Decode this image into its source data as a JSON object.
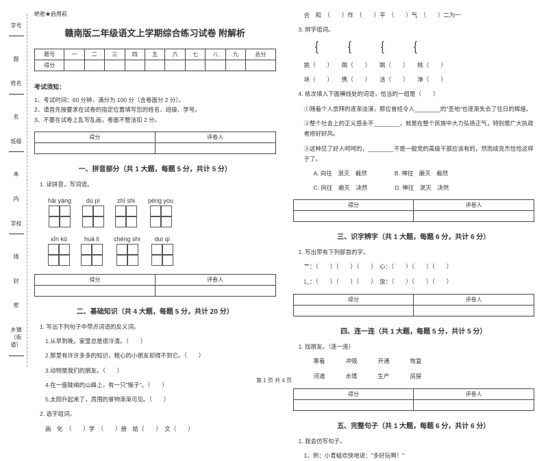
{
  "secret": "绝密★启用前",
  "title": "赣南版二年级语文上学期综合练习试卷 附解析",
  "score_headers": [
    "题号",
    "一",
    "二",
    "三",
    "四",
    "五",
    "六",
    "七",
    "八",
    "九",
    "总分"
  ],
  "score_row_label": "得分",
  "sidebar": [
    {
      "main": "学号",
      "sub": ""
    },
    {
      "main": "姓名",
      "sub": ""
    },
    {
      "main": "班级",
      "sub": ""
    },
    {
      "main": "学校",
      "sub": ""
    },
    {
      "main": "乡镇（街道）",
      "sub": ""
    }
  ],
  "side_marks": [
    "题",
    "名",
    "本",
    "内",
    "线",
    "封",
    "密"
  ],
  "exam_notes_title": "考试须知：",
  "exam_notes": [
    "1、考试时间：60 分钟，满分为 100 分（含卷面分 2 分）。",
    "2、请首先按要求在试卷的指定位置填写您的姓名、班级、学号。",
    "3、不要在试卷上乱写乱画，卷面不整洁扣 2 分。"
  ],
  "mini_table": {
    "c1": "得分",
    "c2": "评卷人"
  },
  "sections": {
    "s1": "一、拼音部分（共 1 大题，每题 5 分，共计 5 分）",
    "s2": "二、基础知识（共 4 大题，每题 5 分，共计 20 分）",
    "s3": "三、识字辨字（共 1 大题，每题 6 分，共计 6 分）",
    "s4": "四、连一连（共 1 大题，每题 5 分，共计 5 分）",
    "s5": "五、完整句子（共 1 大题，每题 6 分，共计 6 分）"
  },
  "q_pinyin_title": "1. 读拼音，写词语。",
  "pinyin_row1": [
    "hǎi yáng",
    "dú pí",
    "zhī shi",
    "péng you"
  ],
  "pinyin_row2": [
    "xīn kǔ",
    "huà lì",
    "chéng shì",
    "duì qí"
  ],
  "q2_title": "1. 写出下列句子中带点词语的反义词。",
  "q2_items": [
    "1.从早到晚，家里总是很冷清。（　　）",
    "2.那里有许许多多的知识，粗心的小朋友却得不到它。（　　）",
    "3.动物是我们的朋友。（　　）",
    "4.在一座陡峭的山峰上，有一只\"猴子\"。（　　）",
    "5.太阳升起来了，周围的景物渐渐可见。（　　）"
  ],
  "q2b_title": "2. 选字组词。",
  "q2b_line": "画　化　（　　）学　（　　）册　给（　　）　文（　　）",
  "r_line1": "合　和　（　　）作　（　　）平　（　　）气　（　　）二为一",
  "r_q3_title": "3. 辨字组词。",
  "r_q3_row1": "挑（　　）　　跳（　　）　　跳（　　）　　桃（　　）",
  "r_q3_row2": "块（　　）　　携（　　）　　洁（　　）　　净（　　）",
  "r_q4_title": "4. 依次填入下面横线处的词语，恰当的一组是（　　）",
  "r_q4_lines": [
    "①随着个人崇拜的逐渐淡漠，那位曾经令人________的\"圣地\"也逐渐失去了往日的辉煌。",
    "②整个社会上的正义感永不________，就是在整个民族中大力弘扬正气，特别是广大执政者修好好风。",
    "③这种见了好人呵呵的，________不是一般党的高级干部应该有的，然而成克杰恰恰这样子了。"
  ],
  "r_q4_opts_a": "A. 向往　泯灭　截然",
  "r_q4_opts_b": "B. 神往　磨灭　截然",
  "r_q4_opts_c": "C. 向往　磨灭　决然",
  "r_q4_opts_d": "D. 神往　泯灭　决然",
  "r_s3_q": "1. 写出带有下列部首的字。",
  "r_s3_lines": [
    "艹：（　　）（　　）（　　）　心：（　　）（　　）（　　）",
    "辶：（　　）（　　）（　　）　虫：（　　）（　　）（　　）"
  ],
  "r_s4_q": "1. 找朋友。（连一连）",
  "r_s4_row1": [
    "寒着",
    "冲毁",
    "开通",
    "恢复"
  ],
  "r_s4_row2": [
    "河道",
    "水情",
    "生产",
    "房屋"
  ],
  "r_s5_q": "1. 我会仿写句子。",
  "r_s5_line": "1、例：小青蛙欢快地说：\"多好玩啊！\"",
  "footer": "第 1 页 共 4 页"
}
